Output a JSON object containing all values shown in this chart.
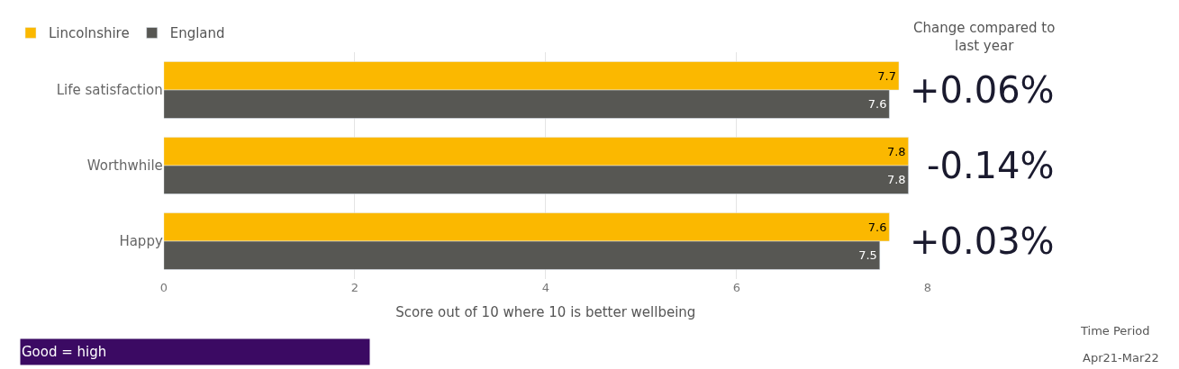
{
  "chart_data": {
    "type": "bar",
    "orientation": "horizontal",
    "xlabel": "Score out of 10 where 10 is better wellbeing",
    "categories": [
      "Life satisfaction",
      "Worthwhile",
      "Happy"
    ],
    "series": [
      {
        "name": "Lincolnshire",
        "color": "#fbb800",
        "values": [
          7.7,
          7.8,
          7.6
        ]
      },
      {
        "name": "England",
        "color": "#575753",
        "values": [
          7.6,
          7.8,
          7.5
        ]
      }
    ],
    "xlim": [
      0,
      8
    ],
    "xticks": [
      0,
      2,
      4,
      6,
      8
    ],
    "grid": "x",
    "legend": "top left",
    "data_labels": true,
    "annotations": [
      "Change compared to\nlast year",
      "+0.06%",
      "-0.14%",
      "+0.03%",
      "Good = high",
      "Time Period",
      "Apr21-Mar22"
    ]
  }
}
